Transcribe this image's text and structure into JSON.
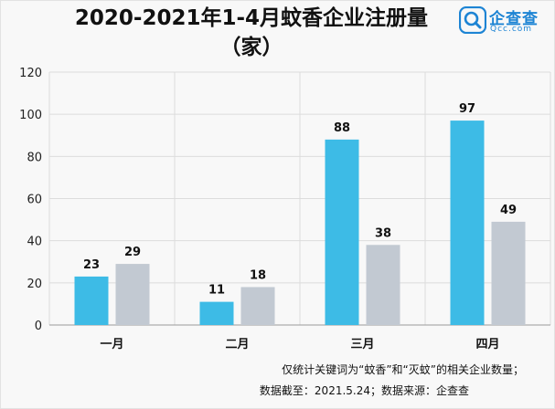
{
  "header": {
    "title_line1": "2020-2021年1-4月蚊香企业注册量",
    "title_line2": "（家）"
  },
  "logo": {
    "name": "企查查",
    "sub": "Qcc.com",
    "icon": "magnifier-logo-icon",
    "color": "#1d84d4"
  },
  "notes": {
    "line1": "仅统计关键词为“蚊香”和“灭蚊”的相关企业数量；",
    "line2": "数据截至：2021.5.24；数据来源：企查查"
  },
  "chart_data": {
    "type": "bar",
    "categories": [
      "一月",
      "二月",
      "三月",
      "四月"
    ],
    "series": [
      {
        "values": [
          23,
          11,
          88,
          97
        ],
        "color": "#3dbbe6"
      },
      {
        "values": [
          29,
          18,
          38,
          49
        ],
        "color": "#c2c9d2"
      }
    ],
    "ylim": [
      0,
      120
    ],
    "yticks": [
      0,
      20,
      40,
      60,
      80,
      100,
      120
    ],
    "grid": true,
    "legend": "none"
  }
}
